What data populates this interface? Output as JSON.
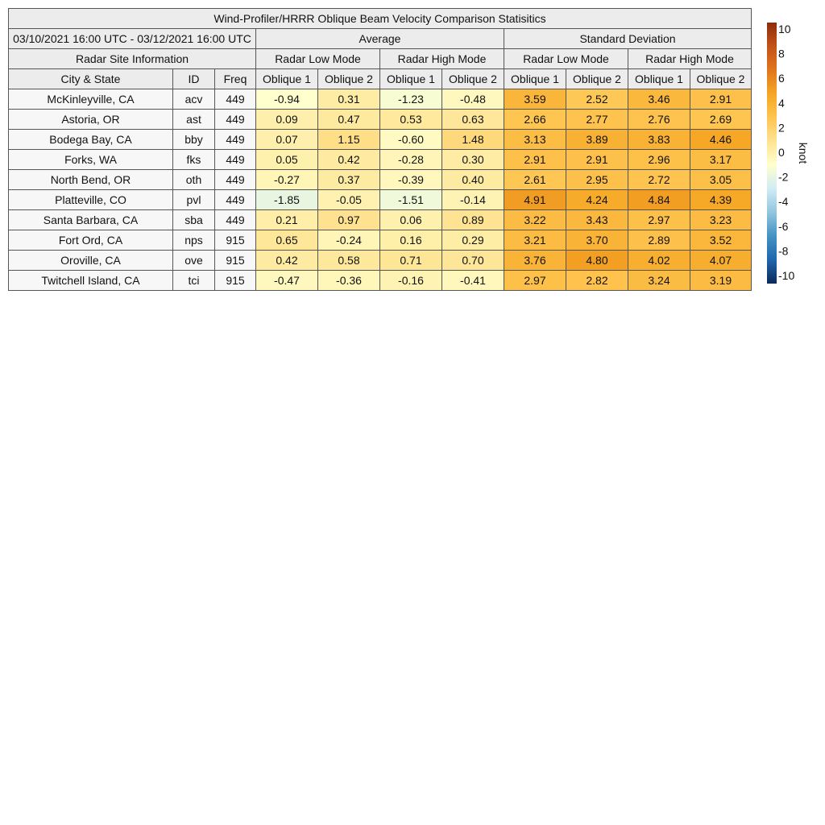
{
  "title": "Wind-Profiler/HRRR Oblique Beam Velocity Comparison Statisitics",
  "date_range": "03/10/2021 16:00 UTC - 03/12/2021 16:00 UTC",
  "group_average": "Average",
  "group_std": "Standard Deviation",
  "site_info_label": "Radar Site Information",
  "mode_low": "Radar Low Mode",
  "mode_high": "Radar High Mode",
  "col_city": "City & State",
  "col_id": "ID",
  "col_freq": "Freq",
  "col_oblique1": "Oblique 1",
  "col_oblique2": "Oblique 2",
  "colorbar": {
    "unit": "knot",
    "ticks": [
      "10",
      "8",
      "6",
      "4",
      "2",
      "0",
      "-2",
      "-4",
      "-6",
      "-8",
      "-10"
    ],
    "range": [
      -10,
      10
    ],
    "colors": [
      "#0b2a5a",
      "#2166ac",
      "#4393c3",
      "#92c5de",
      "#d1ecf5",
      "#ffffcc",
      "#fee391",
      "#fec44f",
      "#f5a623",
      "#e0761c",
      "#c4521a",
      "#8c2d0b"
    ]
  },
  "chart_data": {
    "type": "table",
    "title": "Wind-Profiler/HRRR Oblique Beam Velocity Comparison Statisitics",
    "period": "03/10/2021 16:00 UTC - 03/12/2021 16:00 UTC",
    "unit": "knot",
    "columns": [
      "Average Radar Low Mode Oblique 1",
      "Average Radar Low Mode Oblique 2",
      "Average Radar High Mode Oblique 1",
      "Average Radar High Mode Oblique 2",
      "Standard Deviation Radar Low Mode Oblique 1",
      "Standard Deviation Radar Low Mode Oblique 2",
      "Standard Deviation Radar High Mode Oblique 1",
      "Standard Deviation Radar High Mode Oblique 2"
    ],
    "rows": [
      {
        "city": "McKinleyville, CA",
        "id": "acv",
        "freq": "449",
        "values": [
          "-0.94",
          "0.31",
          "-1.23",
          "-0.48",
          "3.59",
          "2.52",
          "3.46",
          "2.91"
        ]
      },
      {
        "city": "Astoria, OR",
        "id": "ast",
        "freq": "449",
        "values": [
          "0.09",
          "0.47",
          "0.53",
          "0.63",
          "2.66",
          "2.77",
          "2.76",
          "2.69"
        ]
      },
      {
        "city": "Bodega Bay, CA",
        "id": "bby",
        "freq": "449",
        "values": [
          "0.07",
          "1.15",
          "-0.60",
          "1.48",
          "3.13",
          "3.89",
          "3.83",
          "4.46"
        ]
      },
      {
        "city": "Forks, WA",
        "id": "fks",
        "freq": "449",
        "values": [
          "0.05",
          "0.42",
          "-0.28",
          "0.30",
          "2.91",
          "2.91",
          "2.96",
          "3.17"
        ]
      },
      {
        "city": "North Bend, OR",
        "id": "oth",
        "freq": "449",
        "values": [
          "-0.27",
          "0.37",
          "-0.39",
          "0.40",
          "2.61",
          "2.95",
          "2.72",
          "3.05"
        ]
      },
      {
        "city": "Platteville, CO",
        "id": "pvl",
        "freq": "449",
        "values": [
          "-1.85",
          "-0.05",
          "-1.51",
          "-0.14",
          "4.91",
          "4.24",
          "4.84",
          "4.39"
        ]
      },
      {
        "city": "Santa Barbara, CA",
        "id": "sba",
        "freq": "449",
        "values": [
          "0.21",
          "0.97",
          "0.06",
          "0.89",
          "3.22",
          "3.43",
          "2.97",
          "3.23"
        ]
      },
      {
        "city": "Fort Ord, CA",
        "id": "nps",
        "freq": "915",
        "values": [
          "0.65",
          "-0.24",
          "0.16",
          "0.29",
          "3.21",
          "3.70",
          "2.89",
          "3.52"
        ]
      },
      {
        "city": "Oroville, CA",
        "id": "ove",
        "freq": "915",
        "values": [
          "0.42",
          "0.58",
          "0.71",
          "0.70",
          "3.76",
          "4.80",
          "4.02",
          "4.07"
        ]
      },
      {
        "city": "Twitchell Island, CA",
        "id": "tci",
        "freq": "915",
        "values": [
          "-0.47",
          "-0.36",
          "-0.16",
          "-0.41",
          "2.97",
          "2.82",
          "3.24",
          "3.19"
        ]
      }
    ]
  }
}
